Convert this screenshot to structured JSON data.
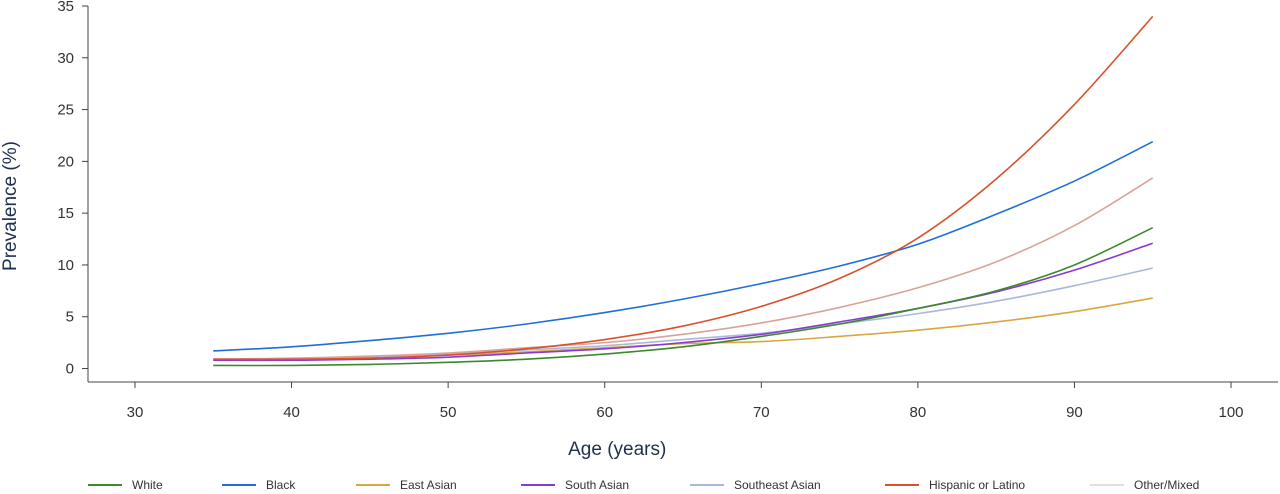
{
  "chart_data": {
    "type": "line",
    "title": "",
    "xlabel": "Age (years)",
    "ylabel": "Prevalence (%)",
    "xlim": [
      27,
      103
    ],
    "ylim": [
      -1.3,
      35
    ],
    "xticks": [
      30,
      40,
      50,
      60,
      70,
      80,
      90,
      100
    ],
    "yticks": [
      0,
      5,
      10,
      15,
      20,
      25,
      30,
      35
    ],
    "grid": false,
    "legend_position": "bottom",
    "x": [
      35,
      40,
      45,
      50,
      55,
      60,
      65,
      70,
      75,
      80,
      85,
      90,
      95
    ],
    "series": [
      {
        "name": "White",
        "color": "#3a8a2a",
        "values": [
          0.3,
          0.3,
          0.4,
          0.6,
          0.9,
          1.4,
          2.1,
          3.1,
          4.3,
          5.8,
          7.5,
          10.0,
          13.6
        ]
      },
      {
        "name": "Black",
        "color": "#1f6fd9",
        "values": [
          1.7,
          2.1,
          2.7,
          3.4,
          4.3,
          5.4,
          6.7,
          8.2,
          9.9,
          12.0,
          14.9,
          18.1,
          21.9
        ]
      },
      {
        "name": "East Asian",
        "color": "#d9a640",
        "values": [
          0.9,
          0.9,
          1.1,
          1.3,
          1.6,
          2.0,
          2.4,
          2.6,
          3.1,
          3.7,
          4.5,
          5.5,
          6.8
        ]
      },
      {
        "name": "South Asian",
        "color": "#8a3ad1",
        "values": [
          0.8,
          0.8,
          0.9,
          1.1,
          1.5,
          1.9,
          2.5,
          3.3,
          4.5,
          5.8,
          7.4,
          9.5,
          12.1
        ]
      },
      {
        "name": "Southeast Asian",
        "color": "#a9b8de",
        "values": [
          0.8,
          0.9,
          1.1,
          1.4,
          1.8,
          2.2,
          2.8,
          3.4,
          4.3,
          5.3,
          6.5,
          8.0,
          9.7
        ]
      },
      {
        "name": "Hispanic or Latino",
        "color": "#d9512b",
        "values": [
          0.9,
          0.9,
          1.0,
          1.3,
          1.9,
          2.8,
          4.1,
          6.0,
          8.7,
          12.6,
          18.3,
          25.5,
          34.0
        ]
      },
      {
        "name": "Other/Mixed",
        "color": "#d9a39a",
        "values": [
          0.9,
          1.0,
          1.2,
          1.5,
          2.0,
          2.5,
          3.3,
          4.4,
          5.9,
          7.8,
          10.3,
          13.8,
          18.4
        ]
      }
    ]
  },
  "legend_colors": {
    "Other/Mixed": "#f2d9d2"
  }
}
